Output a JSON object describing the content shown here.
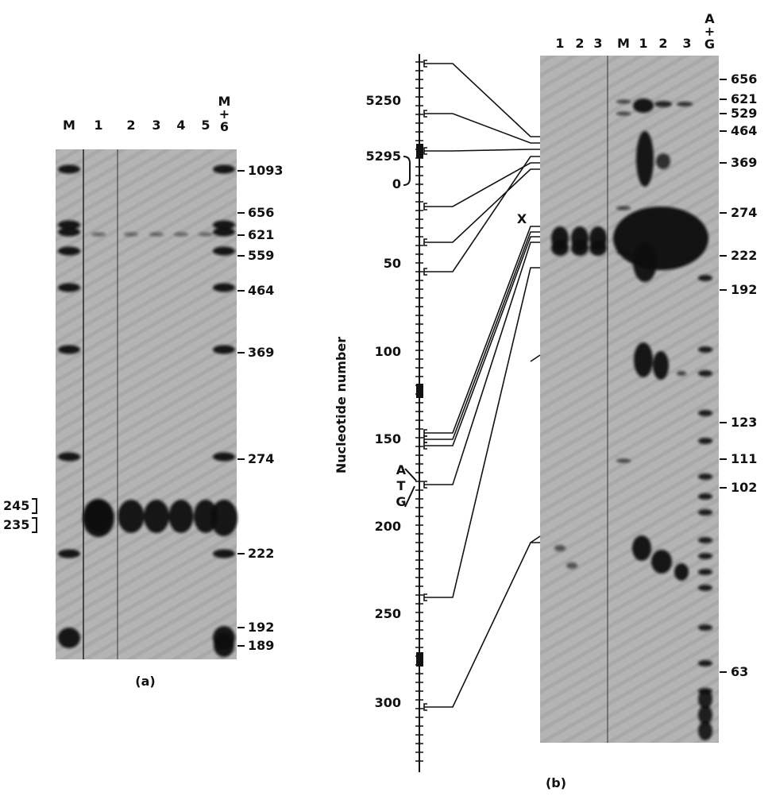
{
  "panel_a": {
    "caption": "(a)",
    "lanes": [
      "M",
      "1",
      "2",
      "3",
      "4",
      "5",
      "M+6"
    ],
    "size_markers": [
      "1093",
      "656",
      "621",
      "559",
      "464",
      "369",
      "274",
      "222",
      "192",
      "189"
    ],
    "band_labels": [
      "245",
      "235"
    ]
  },
  "panel_b": {
    "caption": "(b)",
    "lanes": [
      "1",
      "2",
      "3",
      "M",
      "1",
      "2",
      "3",
      "A+G"
    ],
    "size_markers": [
      "656",
      "621",
      "529",
      "464",
      "369",
      "274",
      "222",
      "192",
      "123",
      "111",
      "102",
      "63"
    ],
    "axis_title": "Nucleotide number",
    "axis_ticks": [
      "5250",
      "5295",
      "0",
      "50",
      "100",
      "150",
      "200",
      "250",
      "300"
    ],
    "codon": [
      "A",
      "T",
      "G"
    ],
    "site_label": "X"
  }
}
